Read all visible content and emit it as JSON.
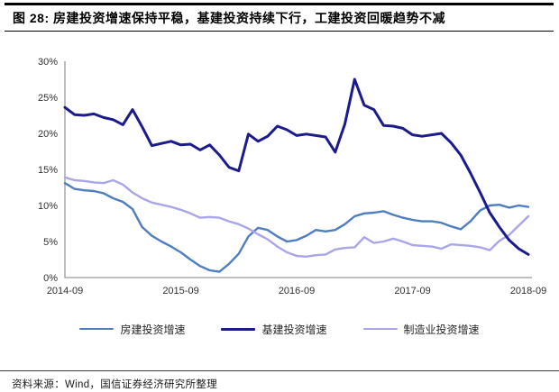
{
  "figure": {
    "title": "图 28: 房建投资增速保持平稳，基建投资持续下行，工建投资回暖趋势不减",
    "source": "资料来源：Wind，国信证券经济研究所整理"
  },
  "chart_data": {
    "type": "line",
    "title": "",
    "xlabel": "",
    "ylabel": "",
    "x_start": "2014-09",
    "x_end": "2018-09",
    "x_interval": "monthly",
    "x_tick_labels": [
      "2014-09",
      "2015-09",
      "2016-09",
      "2017-09",
      "2018-09"
    ],
    "y_tick_labels": [
      "0%",
      "5%",
      "10%",
      "15%",
      "20%",
      "25%",
      "30%"
    ],
    "y_tick_values": [
      0,
      5,
      10,
      15,
      20,
      25,
      30
    ],
    "ylim": [
      0,
      30
    ],
    "grid": false,
    "legend_position": "bottom",
    "axis_color": "#9b9b9b",
    "tick_label_color": "#303030",
    "series": [
      {
        "key": "housing",
        "name": "房建投资增速",
        "color": "#4e7ec0",
        "values": [
          13.1,
          12.3,
          12.1,
          12.0,
          11.7,
          11.0,
          10.5,
          9.5,
          7.0,
          5.8,
          5.0,
          4.3,
          3.5,
          2.5,
          1.6,
          1.0,
          0.8,
          1.9,
          3.3,
          5.7,
          6.9,
          6.6,
          5.7,
          5.0,
          5.2,
          5.8,
          6.6,
          6.4,
          6.6,
          7.4,
          8.5,
          8.9,
          9.0,
          9.2,
          8.7,
          8.3,
          8.0,
          7.8,
          7.8,
          7.6,
          7.1,
          6.7,
          7.8,
          9.3,
          10.0,
          10.1,
          9.7,
          10.0,
          9.8
        ]
      },
      {
        "key": "infrastructure",
        "name": "基建投资增速",
        "color": "#1b1b8e",
        "values": [
          23.6,
          22.6,
          22.5,
          22.7,
          22.2,
          21.9,
          21.2,
          23.3,
          20.9,
          18.3,
          18.6,
          18.9,
          18.4,
          18.5,
          17.7,
          18.4,
          17.0,
          15.3,
          14.8,
          19.9,
          18.9,
          19.6,
          21.0,
          20.5,
          19.7,
          19.9,
          19.7,
          19.5,
          17.4,
          21.3,
          27.5,
          23.9,
          23.3,
          21.1,
          21.0,
          20.7,
          19.8,
          19.6,
          19.8,
          20.0,
          18.7,
          17.0,
          14.5,
          11.8,
          9.0,
          7.0,
          5.2,
          4.0,
          3.2
        ]
      },
      {
        "key": "manufacturing",
        "name": "制造业投资增速",
        "color": "#a9a5e8",
        "values": [
          13.9,
          13.5,
          13.4,
          13.2,
          13.1,
          13.5,
          12.9,
          11.8,
          11.0,
          10.4,
          10.1,
          9.8,
          9.4,
          8.9,
          8.3,
          8.4,
          8.3,
          7.8,
          7.4,
          6.8,
          6.0,
          5.3,
          4.3,
          3.5,
          3.0,
          2.9,
          3.1,
          3.2,
          3.9,
          4.1,
          4.2,
          5.6,
          4.8,
          5.0,
          5.4,
          5.0,
          4.5,
          4.4,
          4.3,
          4.0,
          4.6,
          4.5,
          4.4,
          4.2,
          3.8,
          5.1,
          5.9,
          7.2,
          8.5
        ]
      }
    ]
  }
}
